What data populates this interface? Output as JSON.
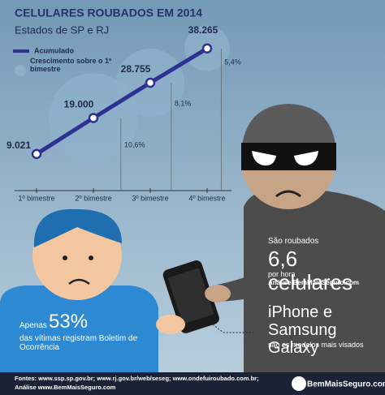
{
  "chart_data": {
    "type": "line",
    "title": "CELULARES ROUBADOS EM 2014",
    "subtitle": "Estados de SP e RJ",
    "categories": [
      "1º bimestre",
      "2º bimestre",
      "3º bimestre",
      "4º bimestre"
    ],
    "ylim": [
      0,
      40000
    ],
    "series": [
      {
        "name": "Acumulado",
        "color": "#2e3192",
        "values": [
          9021,
          19000,
          28755,
          38265
        ],
        "value_labels": [
          "9.021",
          "19.000",
          "28.755",
          "38.265"
        ]
      },
      {
        "name": "Crescimento sobre o 1º bimestre",
        "color": "#8fb2cb",
        "values": [
          null,
          10.6,
          8.1,
          5.4
        ],
        "value_labels": [
          null,
          "10,6%",
          "8,1%",
          "5,4%"
        ]
      }
    ]
  },
  "thief_panel": {
    "intro": "São roubados",
    "headline": "6,6 celulares",
    "unit": "por hora",
    "source": "Análise BemMaisSeguro.com",
    "models": "iPhone e Samsung Galaxy",
    "models_note": "são os modelos mais visados"
  },
  "victim_panel": {
    "intro": "Apenas",
    "headline": "53%",
    "note": "das vítimas registram Boletim de Ocorrência"
  },
  "footer": {
    "sources": "Fontes: www.ssp.sp.gov.br; www.rj.gov.br/web/seseg; www.ondefuiroubado.com.br;",
    "analysis": "Análise www.BemMaisSeguro.com",
    "logo": "BemMaisSeguro.com"
  }
}
